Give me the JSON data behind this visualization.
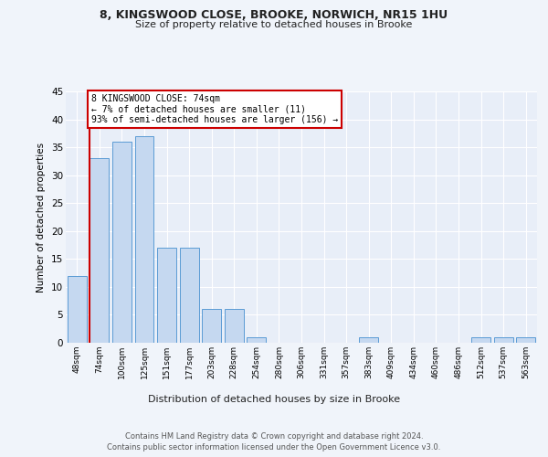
{
  "title1": "8, KINGSWOOD CLOSE, BROOKE, NORWICH, NR15 1HU",
  "title2": "Size of property relative to detached houses in Brooke",
  "xlabel": "Distribution of detached houses by size in Brooke",
  "ylabel": "Number of detached properties",
  "bar_labels": [
    "48sqm",
    "74sqm",
    "100sqm",
    "125sqm",
    "151sqm",
    "177sqm",
    "203sqm",
    "228sqm",
    "254sqm",
    "280sqm",
    "306sqm",
    "331sqm",
    "357sqm",
    "383sqm",
    "409sqm",
    "434sqm",
    "460sqm",
    "486sqm",
    "512sqm",
    "537sqm",
    "563sqm"
  ],
  "bar_values": [
    12,
    33,
    36,
    37,
    17,
    17,
    6,
    6,
    1,
    0,
    0,
    0,
    0,
    1,
    0,
    0,
    0,
    0,
    1,
    1,
    1
  ],
  "bar_color": "#c5d8f0",
  "bar_edge_color": "#5b9bd5",
  "highlight_bar_index": 1,
  "highlight_color": "#cc0000",
  "annotation_text": "8 KINGSWOOD CLOSE: 74sqm\n← 7% of detached houses are smaller (11)\n93% of semi-detached houses are larger (156) →",
  "annotation_box_color": "#ffffff",
  "annotation_box_edge_color": "#cc0000",
  "ylim": [
    0,
    45
  ],
  "yticks": [
    0,
    5,
    10,
    15,
    20,
    25,
    30,
    35,
    40,
    45
  ],
  "bg_color": "#f0f4fa",
  "plot_bg_color": "#e8eef8",
  "footer": "Contains HM Land Registry data © Crown copyright and database right 2024.\nContains public sector information licensed under the Open Government Licence v3.0.",
  "grid_color": "#ffffff"
}
